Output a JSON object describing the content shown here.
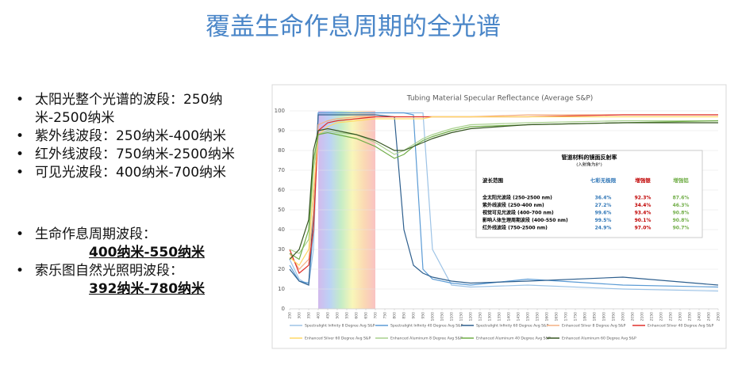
{
  "title": "覆盖生命作息周期的全光谱",
  "bullets": [
    "太阳光整个光谱的波段：250纳米-2500纳米",
    "紫外线波段：250纳米-400纳米",
    "红外线波段：750纳米-2500纳米",
    "可见光波段：400纳米-700纳米"
  ],
  "bullets2": [
    {
      "text": "生命作息周期波段：",
      "sub": "400纳米-550纳米"
    },
    {
      "text": "索乐图自然光照明波段：",
      "sub": "392纳米-780纳米"
    }
  ],
  "chart_data": {
    "type": "line",
    "title": "Tubing Material Specular Reflectance (Average S&P)",
    "x": [
      250,
      300,
      350,
      375,
      400,
      450,
      500,
      600,
      700,
      800,
      850,
      900,
      950,
      1000,
      1100,
      1200,
      1500,
      2000,
      2500
    ],
    "xlim": [
      250,
      2500
    ],
    "xticks": [
      250,
      300,
      350,
      400,
      450,
      500,
      550,
      600,
      650,
      700,
      750,
      800,
      850,
      900,
      950,
      1000,
      1050,
      1100,
      1150,
      1200,
      1250,
      1300,
      1350,
      1400,
      1450,
      1500,
      1550,
      1600,
      1650,
      1700,
      1750,
      1800,
      1850,
      1900,
      1950,
      2000,
      2050,
      2100,
      2150,
      2200,
      2250,
      2300,
      2350,
      2400,
      2450,
      2500
    ],
    "ylim": [
      0,
      100
    ],
    "yticks": [
      0,
      10,
      20,
      30,
      40,
      50,
      60,
      70,
      80,
      90,
      100
    ],
    "grid": true,
    "series": [
      {
        "name": "Spectralight Infinity 8 Degree Avg S&P",
        "color": "#9dc3e6",
        "values": [
          25,
          15,
          12,
          30,
          99,
          99,
          99,
          99,
          99,
          99,
          99,
          99,
          99,
          30,
          12,
          11,
          12,
          10,
          9
        ]
      },
      {
        "name": "Spectralight Infinity 40 Degree Avg S&P",
        "color": "#5b9bd5",
        "values": [
          22,
          14,
          13,
          40,
          99,
          99,
          99,
          99,
          99,
          99,
          99,
          98,
          20,
          15,
          13,
          12,
          15,
          12,
          11
        ]
      },
      {
        "name": "Spectralight Infinity 60 Degree Avg S&P",
        "color": "#2e5f8e",
        "values": [
          20,
          14,
          12,
          50,
          98,
          98,
          98,
          98,
          98,
          97,
          40,
          22,
          18,
          16,
          14,
          13,
          14,
          16,
          12
        ]
      },
      {
        "name": "Enhanced Silver 8 Degree Avg S&P",
        "color": "#f4b183",
        "values": [
          28,
          20,
          25,
          50,
          93,
          95,
          96,
          97,
          97,
          97,
          97,
          97,
          97,
          97,
          97,
          97,
          98,
          98,
          98
        ]
      },
      {
        "name": "Enhanced Silver 40 Degree Avg S&P",
        "color": "#e0302a",
        "values": [
          30,
          18,
          22,
          40,
          90,
          94,
          95,
          96,
          97,
          97,
          97,
          97,
          97,
          97,
          97,
          97,
          97,
          98,
          98
        ]
      },
      {
        "name": "Enhanced Silver 60 Degree Avg S&P",
        "color": "#ffd966",
        "values": [
          26,
          22,
          30,
          60,
          88,
          92,
          94,
          95,
          96,
          96,
          96,
          96,
          96,
          97,
          97,
          97,
          97,
          97,
          97
        ]
      },
      {
        "name": "Enhanced Aluminum 8 Degree Avg S&P",
        "color": "#a9d18e",
        "values": [
          30,
          28,
          35,
          70,
          88,
          90,
          89,
          88,
          84,
          78,
          80,
          83,
          86,
          88,
          91,
          93,
          94,
          95,
          95
        ]
      },
      {
        "name": "Enhanced Aluminum 40 Degree Avg S&P",
        "color": "#70ad47",
        "values": [
          28,
          25,
          40,
          75,
          88,
          89,
          88,
          86,
          82,
          76,
          78,
          82,
          85,
          87,
          90,
          92,
          93,
          94,
          95
        ]
      },
      {
        "name": "Enhanced Aluminum 60 Degree Avg S&P",
        "color": "#375623",
        "values": [
          25,
          30,
          45,
          80,
          90,
          91,
          90,
          88,
          85,
          80,
          80,
          82,
          84,
          86,
          89,
          91,
          93,
          94,
          94
        ]
      }
    ]
  },
  "inset_table": {
    "title": "管道材料的镜面反射率",
    "subtitle": "(入射角为8°)",
    "header": [
      "波长范围",
      "七彩无极限",
      "增强银",
      "增强铝"
    ],
    "header_colors": [
      "#000000",
      "#2e75b6",
      "#c00000",
      "#70ad47"
    ],
    "rows": [
      [
        "全太阳光波段 (250-2500 nm)",
        "36.4%",
        "92.3%",
        "87.6%"
      ],
      [
        "紫外线波段 (250-400 nm)",
        "27.2%",
        "34.4%",
        "46.3%"
      ],
      [
        "视觉可见光波段 (400-700 nm)",
        "99.6%",
        "93.4%",
        "90.8%"
      ],
      [
        "影响人体生理周期波段 (400-550 nm)",
        "99.5%",
        "90.1%",
        "90.8%"
      ],
      [
        "红外线波段 (750-2500 nm)",
        "24.9%",
        "97.0%",
        "90.7%"
      ]
    ]
  }
}
